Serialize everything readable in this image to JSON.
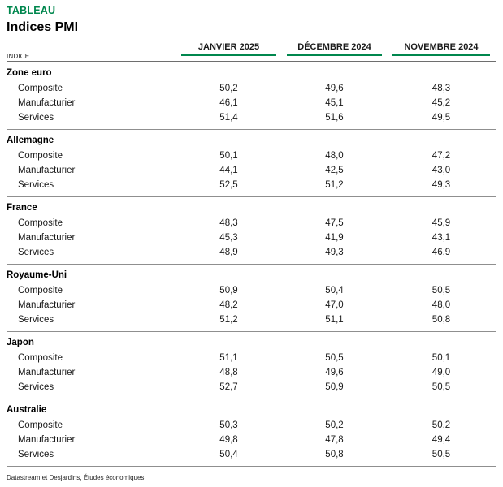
{
  "eyebrow": "TABLEAU",
  "footer_source": "Datastream et Desjardins, Études économiques",
  "colors": {
    "accent_green": "#00874E",
    "header_rule": "#6e6e6e",
    "row_separator": "#8f8f8f"
  },
  "chart_data": {
    "type": "table",
    "title": "Indices PMI",
    "index_label": "INDICE",
    "columns": [
      "JANVIER 2025",
      "DÉCEMBRE 2024",
      "NOVEMBRE 2024"
    ],
    "sections": [
      {
        "name": "Zone euro",
        "rows": [
          {
            "label": "Composite",
            "values": [
              "50,2",
              "49,6",
              "48,3"
            ]
          },
          {
            "label": "Manufacturier",
            "values": [
              "46,1",
              "45,1",
              "45,2"
            ]
          },
          {
            "label": "Services",
            "values": [
              "51,4",
              "51,6",
              "49,5"
            ]
          }
        ]
      },
      {
        "name": "Allemagne",
        "rows": [
          {
            "label": "Composite",
            "values": [
              "50,1",
              "48,0",
              "47,2"
            ]
          },
          {
            "label": "Manufacturier",
            "values": [
              "44,1",
              "42,5",
              "43,0"
            ]
          },
          {
            "label": "Services",
            "values": [
              "52,5",
              "51,2",
              "49,3"
            ]
          }
        ]
      },
      {
        "name": "France",
        "rows": [
          {
            "label": "Composite",
            "values": [
              "48,3",
              "47,5",
              "45,9"
            ]
          },
          {
            "label": "Manufacturier",
            "values": [
              "45,3",
              "41,9",
              "43,1"
            ]
          },
          {
            "label": "Services",
            "values": [
              "48,9",
              "49,3",
              "46,9"
            ]
          }
        ]
      },
      {
        "name": "Royaume-Uni",
        "rows": [
          {
            "label": "Composite",
            "values": [
              "50,9",
              "50,4",
              "50,5"
            ]
          },
          {
            "label": "Manufacturier",
            "values": [
              "48,2",
              "47,0",
              "48,0"
            ]
          },
          {
            "label": "Services",
            "values": [
              "51,2",
              "51,1",
              "50,8"
            ]
          }
        ]
      },
      {
        "name": "Japon",
        "rows": [
          {
            "label": "Composite",
            "values": [
              "51,1",
              "50,5",
              "50,1"
            ]
          },
          {
            "label": "Manufacturier",
            "values": [
              "48,8",
              "49,6",
              "49,0"
            ]
          },
          {
            "label": "Services",
            "values": [
              "52,7",
              "50,9",
              "50,5"
            ]
          }
        ]
      },
      {
        "name": "Australie",
        "rows": [
          {
            "label": "Composite",
            "values": [
              "50,3",
              "50,2",
              "50,2"
            ]
          },
          {
            "label": "Manufacturier",
            "values": [
              "49,8",
              "47,8",
              "49,4"
            ]
          },
          {
            "label": "Services",
            "values": [
              "50,4",
              "50,8",
              "50,5"
            ]
          }
        ]
      }
    ]
  }
}
